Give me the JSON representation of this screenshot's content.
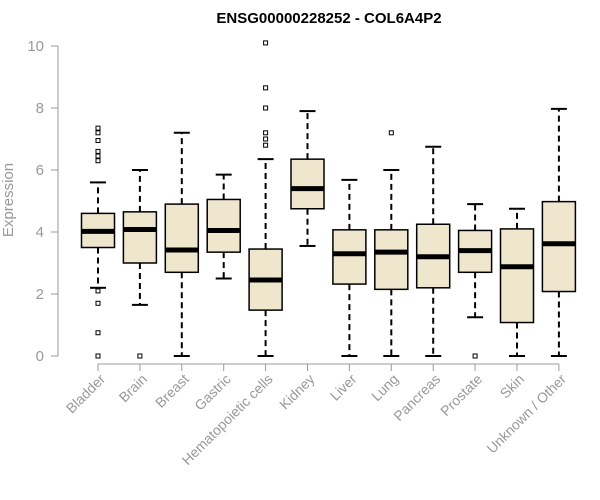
{
  "chart_data": {
    "type": "box",
    "title": "ENSG00000228252 - COL6A4P2",
    "xlabel": "",
    "ylabel": "Expression",
    "ylim": [
      0,
      10.2
    ],
    "yticks": [
      0,
      2,
      4,
      6,
      8,
      10
    ],
    "grid": false,
    "colors": {
      "box_fill": "#efe7cd",
      "box_stroke": "#000000",
      "axis": "#999999"
    },
    "categories": [
      "Bladder",
      "Brain",
      "Breast",
      "Gastric",
      "Hematopoietic cells",
      "Kidney",
      "Liver",
      "Lung",
      "Pancreas",
      "Prostate",
      "Skin",
      "Unknown / Other"
    ],
    "boxes": [
      {
        "whisker_low": 2.2,
        "q1": 3.5,
        "median": 4.02,
        "q3": 4.6,
        "whisker_high": 5.6,
        "outliers": [
          7.35,
          7.2,
          6.95,
          6.6,
          6.45,
          6.3,
          2.1,
          1.7,
          0.75,
          0.0
        ]
      },
      {
        "whisker_low": 1.65,
        "q1": 3.0,
        "median": 4.08,
        "q3": 4.65,
        "whisker_high": 6.0,
        "outliers": [
          0.0
        ]
      },
      {
        "whisker_low": 0.0,
        "q1": 2.7,
        "median": 3.42,
        "q3": 4.9,
        "whisker_high": 7.2,
        "outliers": []
      },
      {
        "whisker_low": 2.5,
        "q1": 3.35,
        "median": 4.05,
        "q3": 5.05,
        "whisker_high": 5.85,
        "outliers": []
      },
      {
        "whisker_low": 0.0,
        "q1": 1.48,
        "median": 2.45,
        "q3": 3.45,
        "whisker_high": 6.35,
        "outliers": [
          10.1,
          8.65,
          8.0,
          7.2,
          7.0,
          6.8
        ]
      },
      {
        "whisker_low": 3.55,
        "q1": 4.75,
        "median": 5.4,
        "q3": 6.35,
        "whisker_high": 7.9,
        "outliers": []
      },
      {
        "whisker_low": 0.0,
        "q1": 2.32,
        "median": 3.3,
        "q3": 4.07,
        "whisker_high": 5.68,
        "outliers": []
      },
      {
        "whisker_low": 0.0,
        "q1": 2.15,
        "median": 3.35,
        "q3": 4.07,
        "whisker_high": 6.0,
        "outliers": [
          7.2
        ]
      },
      {
        "whisker_low": 0.0,
        "q1": 2.2,
        "median": 3.2,
        "q3": 4.25,
        "whisker_high": 6.75,
        "outliers": []
      },
      {
        "whisker_low": 1.25,
        "q1": 2.7,
        "median": 3.4,
        "q3": 4.05,
        "whisker_high": 4.9,
        "outliers": [
          0.0
        ]
      },
      {
        "whisker_low": 0.0,
        "q1": 1.08,
        "median": 2.88,
        "q3": 4.1,
        "whisker_high": 4.75,
        "outliers": []
      },
      {
        "whisker_low": 0.0,
        "q1": 2.08,
        "median": 3.62,
        "q3": 4.98,
        "whisker_high": 7.97,
        "outliers": []
      }
    ]
  }
}
